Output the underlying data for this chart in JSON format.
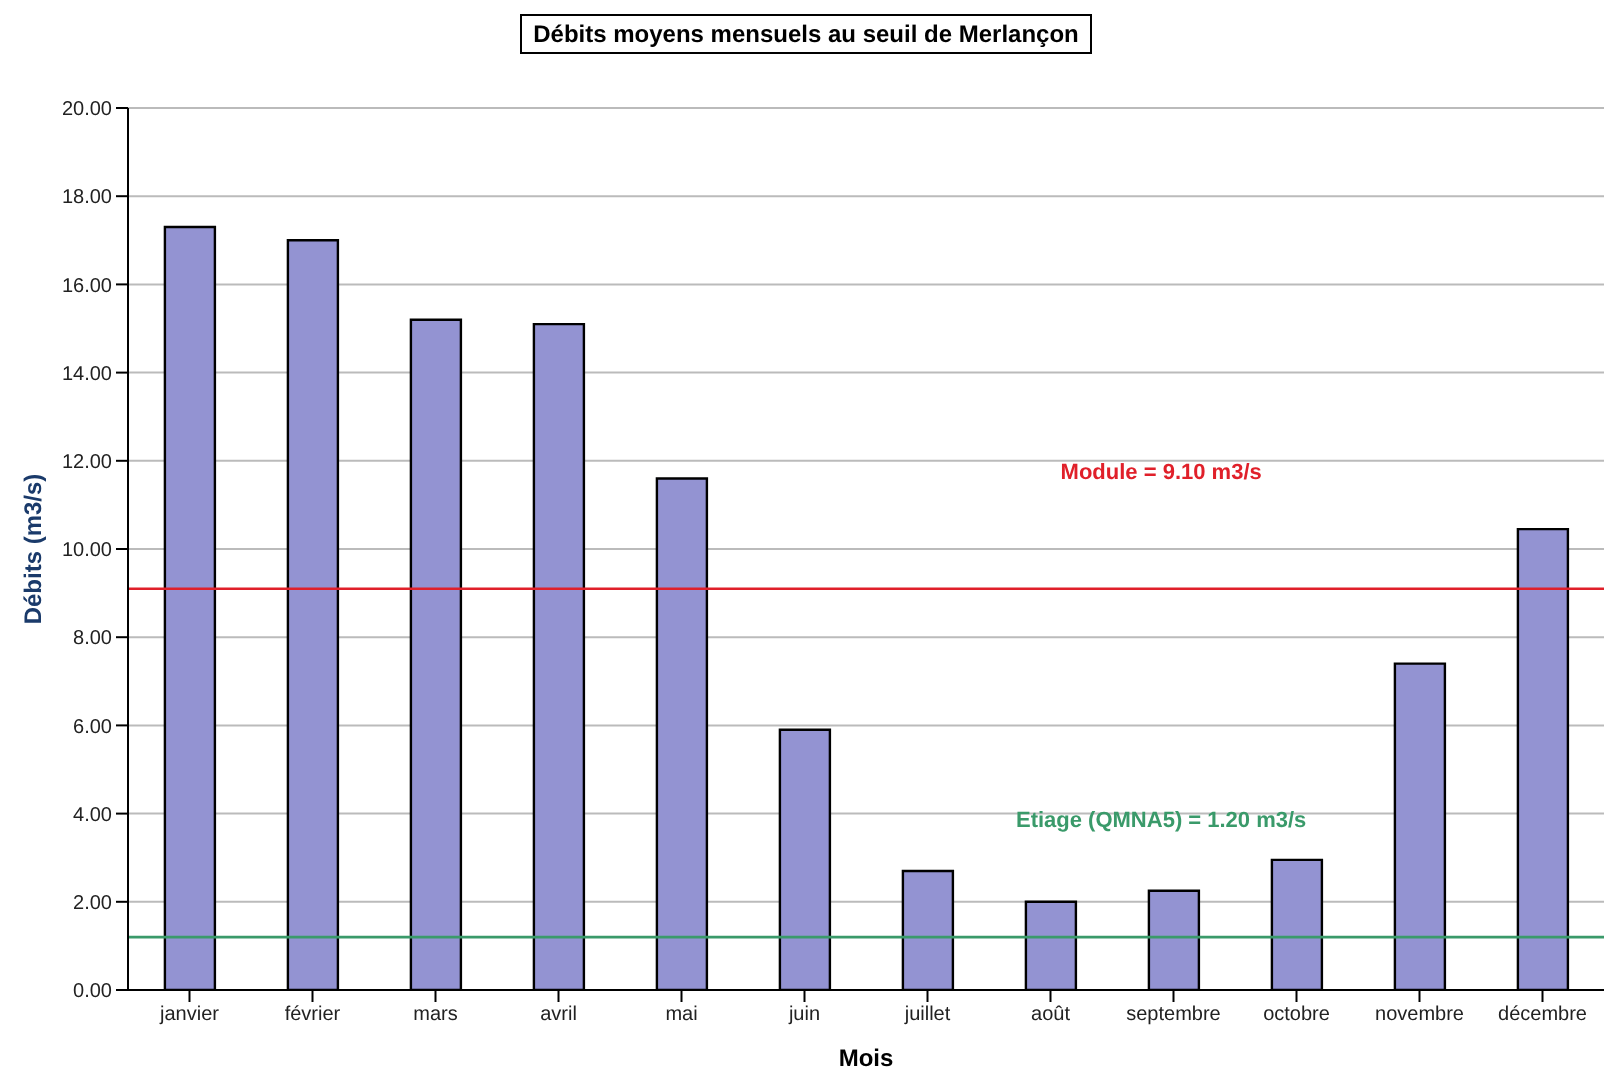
{
  "chart_data": {
    "type": "bar",
    "title": "Débits moyens mensuels au seuil de Merlançon",
    "xlabel": "Mois",
    "ylabel": "Débits (m3/s)",
    "categories": [
      "janvier",
      "février",
      "mars",
      "avril",
      "mai",
      "juin",
      "juillet",
      "août",
      "septembre",
      "octobre",
      "novembre",
      "décembre"
    ],
    "values": [
      17.3,
      17.0,
      15.2,
      15.1,
      11.6,
      5.9,
      2.7,
      2.0,
      2.25,
      2.95,
      7.4,
      10.45
    ],
    "color": "#9393d2",
    "ylim": [
      0,
      20
    ],
    "yticks": [
      {
        "value": 0,
        "label": "0.00"
      },
      {
        "value": 2,
        "label": "2.00"
      },
      {
        "value": 4,
        "label": "4.00"
      },
      {
        "value": 6,
        "label": "6.00"
      },
      {
        "value": 8,
        "label": "8.00"
      },
      {
        "value": 10,
        "label": "10.00"
      },
      {
        "value": 12,
        "label": "12.00"
      },
      {
        "value": 14,
        "label": "14.00"
      },
      {
        "value": 16,
        "label": "16.00"
      },
      {
        "value": 18,
        "label": "18.00"
      },
      {
        "value": 20,
        "label": "20.00"
      }
    ],
    "grid": "y",
    "ref_lines": [
      {
        "axis": "y",
        "value": 9.1,
        "label": "Module = 9.10 m3/s",
        "color": "#e0202a"
      },
      {
        "axis": "y",
        "value": 1.2,
        "label": "Etiage (QMNA5) = 1.20 m3/s",
        "color": "#3a9a6a"
      }
    ]
  }
}
